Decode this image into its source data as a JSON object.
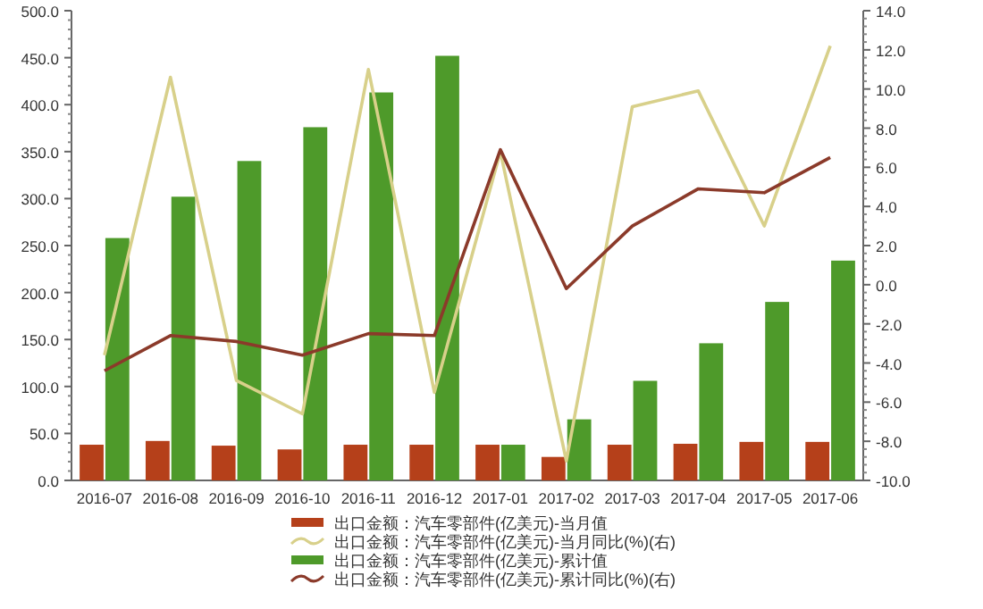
{
  "chart_data": {
    "type": "bar",
    "categories": [
      "2016-07",
      "2016-08",
      "2016-09",
      "2016-10",
      "2016-11",
      "2016-12",
      "2017-01",
      "2017-02",
      "2017-03",
      "2017-04",
      "2017-05",
      "2017-06"
    ],
    "series": [
      {
        "name": "出口金额：汽车零部件(亿美元)-当月值",
        "color": "#b5401a",
        "values": [
          38,
          42,
          37,
          33,
          38,
          38,
          38,
          25,
          38,
          39,
          41,
          41
        ]
      },
      {
        "name": "出口金额：汽车零部件(亿美元)-当月同比(%)(右)",
        "type": "line",
        "axis": "y2",
        "color": "#d8d08a",
        "values": [
          -3.6,
          10.6,
          -4.9,
          -6.6,
          11.0,
          -5.5,
          6.8,
          -9.0,
          9.1,
          9.9,
          3.0,
          12.2
        ]
      },
      {
        "name": "出口金额：汽车零部件(亿美元)-累计值",
        "color": "#4e9a2a",
        "values": [
          258,
          302,
          340,
          376,
          413,
          452,
          38,
          65,
          106,
          146,
          190,
          234
        ]
      },
      {
        "name": "出口金额：汽车零部件(亿美元)-累计同比(%)(右)",
        "type": "line",
        "axis": "y2",
        "color": "#8b3a2a",
        "values": [
          -4.4,
          -2.6,
          -2.9,
          -3.6,
          -2.5,
          -2.6,
          6.9,
          -0.2,
          3.0,
          4.9,
          4.7,
          6.5
        ]
      }
    ],
    "ylim": [
      0,
      500
    ],
    "yticks": [
      {
        "value": 0,
        "label": "0.0"
      },
      {
        "value": 50,
        "label": "50.0"
      },
      {
        "value": 100,
        "label": "100.0"
      },
      {
        "value": 150,
        "label": "150.0"
      },
      {
        "value": 200,
        "label": "200.0"
      },
      {
        "value": 250,
        "label": "250.0"
      },
      {
        "value": 300,
        "label": "300.0"
      },
      {
        "value": 350,
        "label": "350.0"
      },
      {
        "value": 400,
        "label": "400.0"
      },
      {
        "value": 450,
        "label": "450.0"
      },
      {
        "value": 500,
        "label": "500.0"
      }
    ],
    "y2lim": [
      -10,
      14
    ],
    "y2ticks": [
      {
        "value": -10,
        "label": "-10.0"
      },
      {
        "value": -8,
        "label": "-8.0"
      },
      {
        "value": -6,
        "label": "-6.0"
      },
      {
        "value": -4,
        "label": "-4.0"
      },
      {
        "value": -2,
        "label": "-2.0"
      },
      {
        "value": 0,
        "label": "0.0"
      },
      {
        "value": 2,
        "label": "2.0"
      },
      {
        "value": 4,
        "label": "4.0"
      },
      {
        "value": 6,
        "label": "6.0"
      },
      {
        "value": 8,
        "label": "8.0"
      },
      {
        "value": 10,
        "label": "10.0"
      },
      {
        "value": 12,
        "label": "12.0"
      },
      {
        "value": 14,
        "label": "14.0"
      }
    ],
    "legend": "bottom",
    "grid": false,
    "marker": "none"
  }
}
